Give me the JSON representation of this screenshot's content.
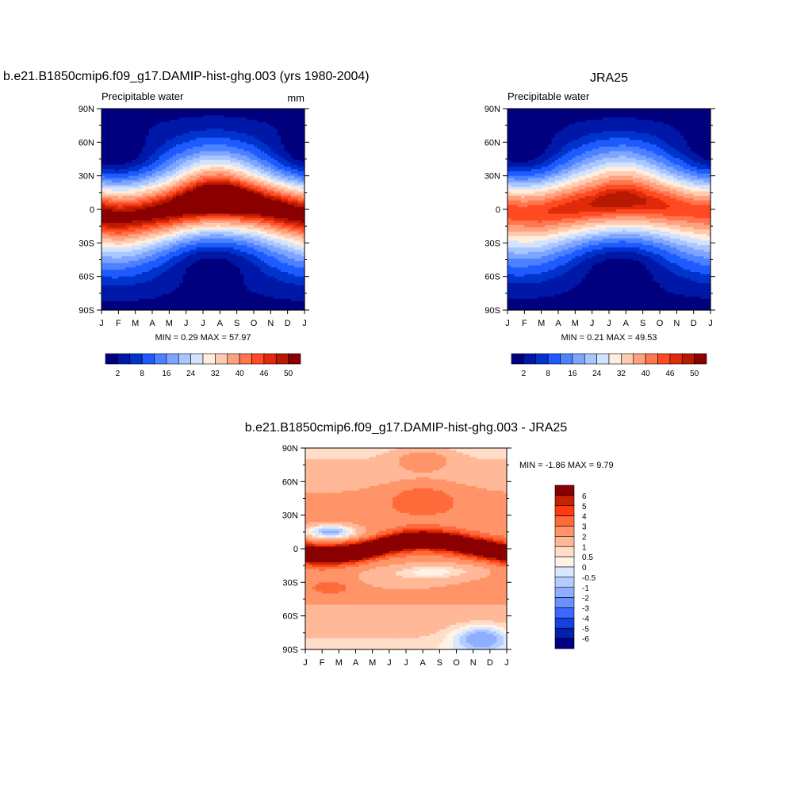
{
  "panels": {
    "model": {
      "title": "b.e21.B1850cmip6.f09_g17.DAMIP-hist-ghg.003 (yrs 1980-2004)",
      "left_label": "Precipitable water",
      "right_label": "mm",
      "stats": "MIN =   0.29 MAX =  57.97"
    },
    "obs": {
      "title": "JRA25",
      "left_label": "Precipitable water",
      "right_label": "",
      "stats": "MIN =   0.21 MAX =  49.53"
    },
    "diff": {
      "title": "b.e21.B1850cmip6.f09_g17.DAMIP-hist-ghg.003 - JRA25",
      "stats": "MIN =  -1.86 MAX =    9.79"
    }
  },
  "chart_data": [
    {
      "type": "heatmap",
      "title": "b.e21.B1850cmip6.f09_g17.DAMIP-hist-ghg.003 (yrs 1980-2004)",
      "subtitle": "Precipitable water",
      "units": "mm",
      "x_ticks": [
        "J",
        "F",
        "M",
        "A",
        "M",
        "J",
        "J",
        "A",
        "S",
        "O",
        "N",
        "D",
        "J"
      ],
      "y_ticks": [
        "90N",
        "60N",
        "30N",
        "0",
        "30S",
        "60S",
        "90S"
      ],
      "ylim": [
        -90,
        90
      ],
      "min": 0.29,
      "max": 57.97,
      "itcz_lat_by_month": [
        -4,
        -6,
        -5,
        -3,
        0,
        4,
        7,
        8,
        7,
        5,
        2,
        -1,
        -4
      ],
      "peak_value_by_month": [
        52,
        51,
        51,
        52,
        53,
        55,
        57,
        58,
        57,
        55,
        54,
        53,
        52
      ],
      "colorbar": {
        "levels": [
          "2",
          "8",
          "16",
          "24",
          "32",
          "40",
          "46",
          "50"
        ],
        "colors": [
          "#00007f",
          "#0018a8",
          "#0032cc",
          "#1e5bff",
          "#4c82ff",
          "#7ea5ff",
          "#aac6ff",
          "#d2e2ff",
          "#ffeedd",
          "#ffcbb0",
          "#ffa280",
          "#ff7650",
          "#ff4a22",
          "#e02b0a",
          "#b71a00",
          "#8a0000"
        ]
      }
    },
    {
      "type": "heatmap",
      "title": "JRA25",
      "subtitle": "Precipitable water",
      "x_ticks": [
        "J",
        "F",
        "M",
        "A",
        "M",
        "J",
        "J",
        "A",
        "S",
        "O",
        "N",
        "D",
        "J"
      ],
      "y_ticks": [
        "90N",
        "60N",
        "30N",
        "0",
        "30S",
        "60S",
        "90S"
      ],
      "ylim": [
        -90,
        90
      ],
      "min": 0.21,
      "max": 49.53,
      "itcz_lat_by_month": [
        -1,
        -2,
        -2,
        0,
        2,
        4,
        6,
        7,
        6,
        4,
        2,
        0,
        -1
      ],
      "peak_value_by_month": [
        45,
        45,
        46,
        47,
        48,
        48,
        49,
        49,
        48,
        47,
        46,
        45,
        45
      ],
      "colorbar": {
        "levels": [
          "2",
          "8",
          "16",
          "24",
          "32",
          "40",
          "46",
          "50"
        ],
        "colors": [
          "#00007f",
          "#0018a8",
          "#0032cc",
          "#1e5bff",
          "#4c82ff",
          "#7ea5ff",
          "#aac6ff",
          "#d2e2ff",
          "#ffeedd",
          "#ffcbb0",
          "#ffa280",
          "#ff7650",
          "#ff4a22",
          "#e02b0a",
          "#b71a00",
          "#8a0000"
        ]
      }
    },
    {
      "type": "heatmap",
      "title": "b.e21.B1850cmip6.f09_g17.DAMIP-hist-ghg.003 - JRA25",
      "x_ticks": [
        "J",
        "F",
        "M",
        "A",
        "M",
        "J",
        "J",
        "A",
        "S",
        "O",
        "N",
        "D",
        "J"
      ],
      "y_ticks": [
        "90N",
        "60N",
        "30N",
        "0",
        "30S",
        "60S",
        "90S"
      ],
      "ylim": [
        -90,
        90
      ],
      "min": -1.86,
      "max": 9.79,
      "colorbar": {
        "levels": [
          "6",
          "5",
          "4",
          "3",
          "2",
          "1",
          "0.5",
          "0",
          "-0.5",
          "-1",
          "-2",
          "-3",
          "-4",
          "-5",
          "-6"
        ],
        "colors": [
          "#8a0000",
          "#c42200",
          "#ff3a10",
          "#ff6a3a",
          "#ff9468",
          "#ffb898",
          "#ffddc8",
          "#fff3e6",
          "#d8e8ff",
          "#b4ccff",
          "#8eaeff",
          "#6890ff",
          "#3c68ff",
          "#1840e0",
          "#0020b0",
          "#000080"
        ]
      }
    }
  ]
}
